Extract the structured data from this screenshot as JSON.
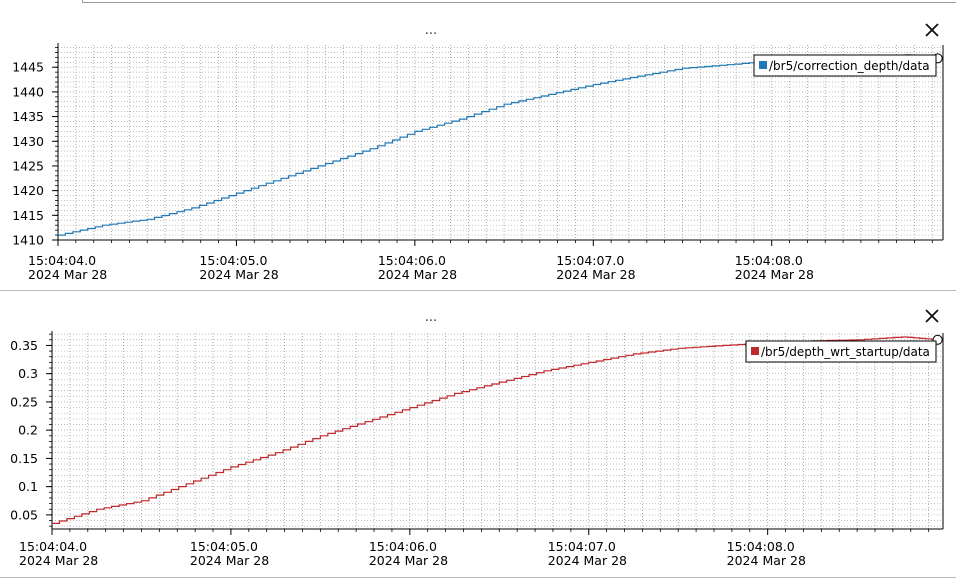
{
  "plots": [
    {
      "menu_label": "...",
      "close_icon": "close-icon",
      "chart_data": {
        "type": "line",
        "x_ticks": [
          {
            "time": "15:04:04.0",
            "date": "2024 Mar 28"
          },
          {
            "time": "15:04:05.0",
            "date": "2024 Mar 28"
          },
          {
            "time": "15:04:06.0",
            "date": "2024 Mar 28"
          },
          {
            "time": "15:04:07.0",
            "date": "2024 Mar 28"
          },
          {
            "time": "15:04:08.0",
            "date": "2024 Mar 28"
          }
        ],
        "xlim": [
          0,
          4.96
        ],
        "ylim": [
          1410,
          1449.5
        ],
        "y_ticks": [
          1410,
          1415,
          1420,
          1425,
          1430,
          1435,
          1440,
          1445
        ],
        "grid": true,
        "legend_position": "top-right",
        "series": [
          {
            "name": "/br5/correction_depth/data",
            "color": "#1f77b4",
            "x": [
              0.0,
              0.25,
              0.5,
              0.75,
              1.0,
              1.25,
              1.5,
              1.75,
              2.0,
              2.25,
              2.5,
              2.75,
              3.0,
              3.25,
              3.5,
              3.75,
              4.0,
              4.25,
              4.5,
              4.75,
              4.93
            ],
            "y": [
              1411.0,
              1413.0,
              1414.2,
              1416.5,
              1419.5,
              1422.5,
              1425.5,
              1428.5,
              1432.0,
              1434.5,
              1437.5,
              1439.5,
              1441.5,
              1443.2,
              1444.8,
              1445.5,
              1446.3,
              1446.5,
              1446.8,
              1447.5,
              1446.8
            ]
          }
        ]
      }
    },
    {
      "menu_label": "...",
      "close_icon": "close-icon",
      "chart_data": {
        "type": "line",
        "x_ticks": [
          {
            "time": "15:04:04.0",
            "date": "2024 Mar 28"
          },
          {
            "time": "15:04:05.0",
            "date": "2024 Mar 28"
          },
          {
            "time": "15:04:06.0",
            "date": "2024 Mar 28"
          },
          {
            "time": "15:04:07.0",
            "date": "2024 Mar 28"
          },
          {
            "time": "15:04:08.0",
            "date": "2024 Mar 28"
          }
        ],
        "xlim": [
          0,
          4.98
        ],
        "ylim": [
          0.025,
          0.372
        ],
        "y_ticks": [
          "0.05",
          "0.1",
          "0.15",
          "0.2",
          "0.25",
          "0.3",
          "0.35"
        ],
        "grid": true,
        "legend_position": "top-right",
        "series": [
          {
            "name": "/br5/depth_wrt_startup/data",
            "color": "#c0282b",
            "x": [
              0.0,
              0.25,
              0.5,
              0.75,
              1.0,
              1.25,
              1.5,
              1.75,
              2.0,
              2.25,
              2.5,
              2.75,
              3.0,
              3.25,
              3.5,
              3.75,
              4.0,
              4.25,
              4.5,
              4.75,
              4.95
            ],
            "y": [
              0.035,
              0.06,
              0.075,
              0.105,
              0.135,
              0.16,
              0.19,
              0.215,
              0.24,
              0.265,
              0.285,
              0.305,
              0.32,
              0.335,
              0.345,
              0.35,
              0.355,
              0.358,
              0.36,
              0.365,
              0.36
            ]
          }
        ]
      }
    }
  ]
}
